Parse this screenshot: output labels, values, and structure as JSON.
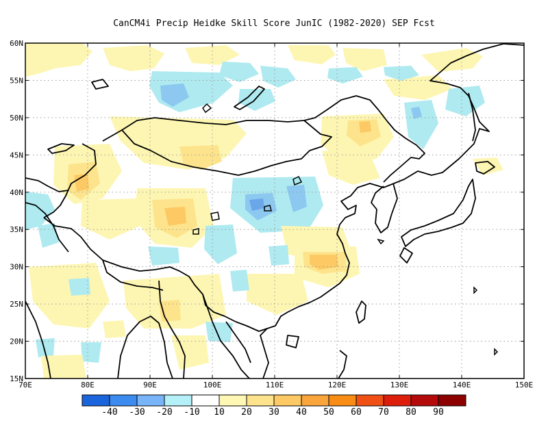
{
  "title": "CanCM4i Precip Heidke Skill Score JunIC (1982-2020) SEP Fcst",
  "map": {
    "lon_range": [
      70,
      150
    ],
    "lat_range": [
      15,
      60
    ],
    "x_ticks": [
      "70E",
      "80E",
      "90E",
      "100E",
      "110E",
      "120E",
      "130E",
      "140E",
      "150E"
    ],
    "y_ticks": [
      "15N",
      "20N",
      "25N",
      "30N",
      "35N",
      "40N",
      "45N",
      "50N",
      "55N",
      "60N"
    ],
    "grid": "dotted gray every 5 degrees latitude and 10 degrees longitude",
    "colors": {
      "light_blue": "#aeeaf0",
      "mid_blue": "#8cc8f0",
      "strong_blue": "#6aa6e8",
      "pale_yellow": "#fdf6b2",
      "yellow": "#fde48c",
      "light_orange": "#fcc964",
      "orange": "#f9a53c",
      "coastline": "#000000"
    }
  },
  "colorbar": {
    "colors": [
      "#1a64dc",
      "#3c8cf0",
      "#78b4f8",
      "#b4f0f8",
      "#ffffff",
      "#fff8b4",
      "#fde48c",
      "#fcc964",
      "#f9a53c",
      "#f88c14",
      "#f05014",
      "#dc1e0a",
      "#b40a0a",
      "#8c0000"
    ],
    "labels": [
      "-40",
      "-30",
      "-20",
      "-10",
      "10",
      "20",
      "30",
      "40",
      "50",
      "60",
      "70",
      "80",
      "90"
    ]
  }
}
